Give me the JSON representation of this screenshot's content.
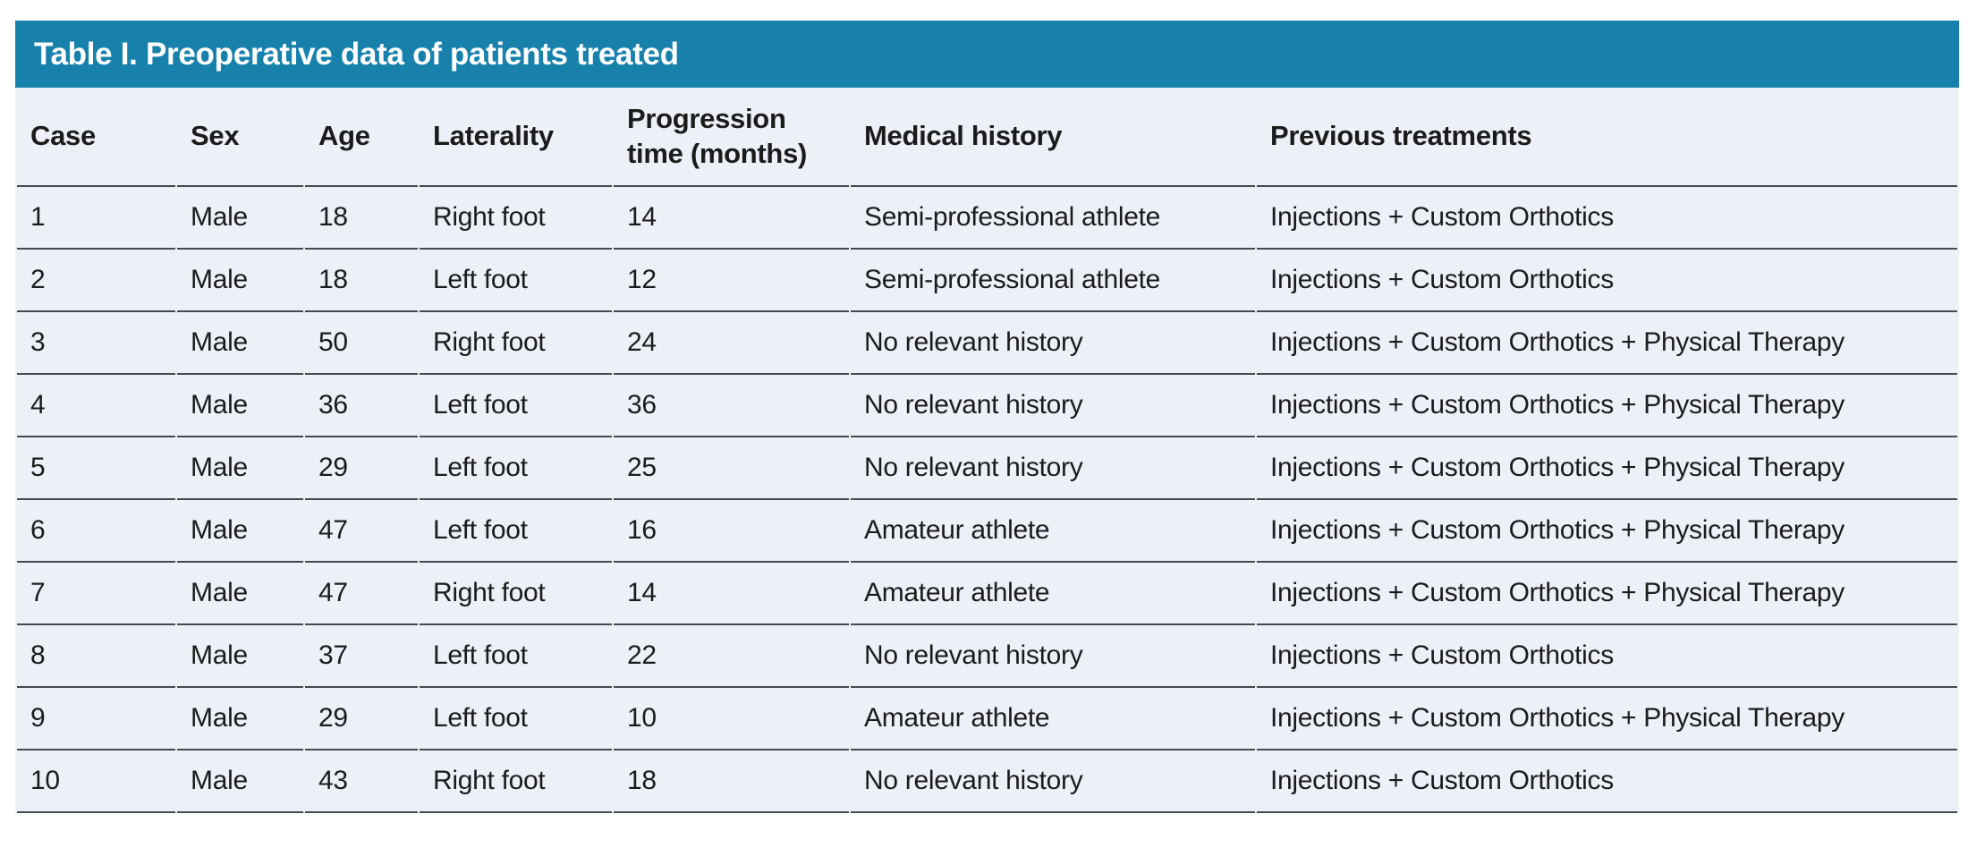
{
  "table": {
    "title": "Table I. Preoperative data of patients treated",
    "columns": [
      "Case",
      "Sex",
      "Age",
      "Laterality",
      "Progression time (months)",
      "Medical history",
      "Previous treatments"
    ],
    "rows": [
      {
        "case": "1",
        "sex": "Male",
        "age": "18",
        "laterality": "Right foot",
        "progression_months": "14",
        "medical_history": "Semi-professional athlete",
        "previous_treatments": "Injections + Custom Orthotics"
      },
      {
        "case": "2",
        "sex": "Male",
        "age": "18",
        "laterality": "Left foot",
        "progression_months": "12",
        "medical_history": "Semi-professional athlete",
        "previous_treatments": "Injections + Custom Orthotics"
      },
      {
        "case": "3",
        "sex": "Male",
        "age": "50",
        "laterality": "Right foot",
        "progression_months": "24",
        "medical_history": "No relevant history",
        "previous_treatments": "Injections + Custom Orthotics + Physical Therapy"
      },
      {
        "case": "4",
        "sex": "Male",
        "age": "36",
        "laterality": "Left foot",
        "progression_months": "36",
        "medical_history": "No relevant history",
        "previous_treatments": "Injections + Custom Orthotics + Physical Therapy"
      },
      {
        "case": "5",
        "sex": "Male",
        "age": "29",
        "laterality": "Left foot",
        "progression_months": "25",
        "medical_history": "No relevant history",
        "previous_treatments": "Injections + Custom Orthotics + Physical Therapy"
      },
      {
        "case": "6",
        "sex": "Male",
        "age": "47",
        "laterality": "Left foot",
        "progression_months": "16",
        "medical_history": "Amateur athlete",
        "previous_treatments": "Injections + Custom Orthotics + Physical Therapy"
      },
      {
        "case": "7",
        "sex": "Male",
        "age": "47",
        "laterality": "Right foot",
        "progression_months": "14",
        "medical_history": "Amateur athlete",
        "previous_treatments": "Injections + Custom Orthotics + Physical Therapy"
      },
      {
        "case": "8",
        "sex": "Male",
        "age": "37",
        "laterality": "Left foot",
        "progression_months": "22",
        "medical_history": "No relevant history",
        "previous_treatments": "Injections + Custom Orthotics"
      },
      {
        "case": "9",
        "sex": "Male",
        "age": "29",
        "laterality": "Left foot",
        "progression_months": "10",
        "medical_history": "Amateur athlete",
        "previous_treatments": "Injections + Custom Orthotics + Physical Therapy"
      },
      {
        "case": "10",
        "sex": "Male",
        "age": "43",
        "laterality": "Right foot",
        "progression_months": "18",
        "medical_history": "No relevant history",
        "previous_treatments": "Injections + Custom Orthotics"
      }
    ],
    "colors": {
      "title_bar_background": "#1781AC",
      "title_text": "#FFFFFF",
      "row_background": "#EDF1F7",
      "divider_line": "#45494E",
      "body_text": "#1B1B1B"
    }
  }
}
